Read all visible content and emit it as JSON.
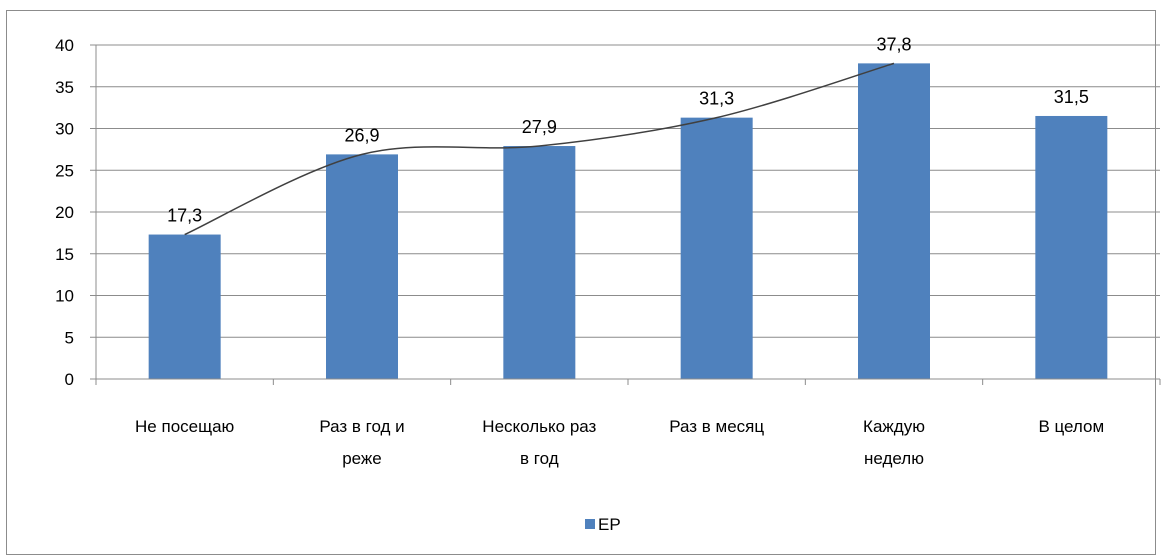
{
  "chart_data": {
    "type": "bar",
    "categories": [
      [
        "Не посещаю"
      ],
      [
        "Раз в год и",
        "реже"
      ],
      [
        "Несколько раз",
        "в год"
      ],
      [
        "Раз в месяц"
      ],
      [
        "Каждую",
        "неделю"
      ],
      [
        "В целом"
      ]
    ],
    "series": [
      {
        "name": "ЕР",
        "values": [
          17.3,
          26.9,
          27.9,
          31.3,
          37.8,
          31.5
        ],
        "labels": [
          "17,3",
          "26,9",
          "27,9",
          "31,3",
          "37,8",
          "31,5"
        ],
        "color": "#4f81bd"
      }
    ],
    "trendline": {
      "applies_to": "first 5 categories",
      "color": "#404040"
    },
    "yticks": [
      "0",
      "5",
      "10",
      "15",
      "20",
      "25",
      "30",
      "35",
      "40"
    ],
    "ylim": [
      0,
      40
    ],
    "grid": true,
    "legend": {
      "position": "bottom",
      "label": "ЕР"
    }
  }
}
